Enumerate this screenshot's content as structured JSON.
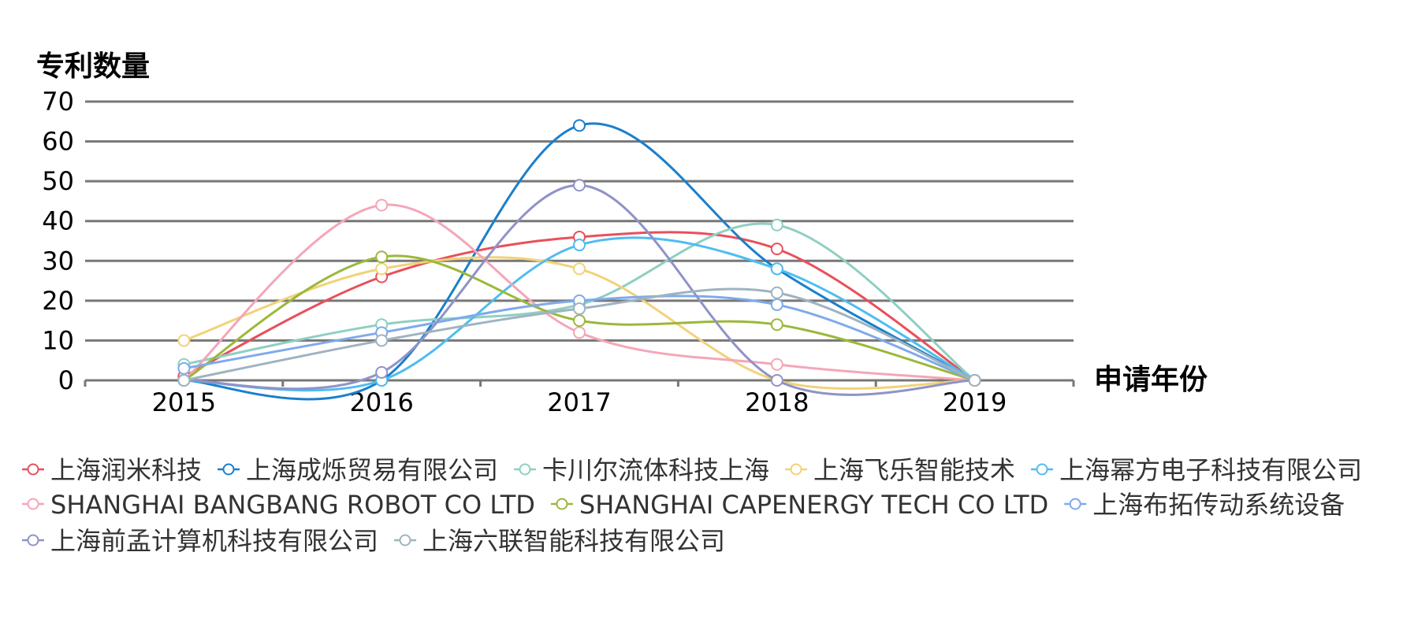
{
  "chart_data": {
    "type": "line",
    "ylabel": "专利数量",
    "xlabel": "申请年份",
    "x": [
      "2015",
      "2016",
      "2017",
      "2018",
      "2019"
    ],
    "ylim": [
      0,
      70
    ],
    "yticks": [
      0,
      10,
      20,
      30,
      40,
      50,
      60,
      70
    ],
    "grid": true,
    "smooth": true,
    "legend_position": "bottom",
    "series": [
      {
        "name": "上海润米科技",
        "color": "#e8505b",
        "values": [
          1,
          26,
          36,
          33,
          0
        ]
      },
      {
        "name": "上海成烁贸易有限公司",
        "color": "#1a7fcc",
        "values": [
          0,
          0,
          64,
          28,
          0
        ]
      },
      {
        "name": "卡川尔流体科技上海",
        "color": "#8fcfc2",
        "values": [
          4,
          14,
          19,
          39,
          0
        ]
      },
      {
        "name": "上海飞乐智能技术",
        "color": "#f2d279",
        "values": [
          10,
          28,
          28,
          0,
          0
        ]
      },
      {
        "name": "上海幂方电子科技有限公司",
        "color": "#4fbdf0",
        "values": [
          0,
          0,
          34,
          28,
          0
        ]
      },
      {
        "name": "SHANGHAI BANGBANG ROBOT CO LTD",
        "color": "#f4a6b8",
        "values": [
          0,
          44,
          12,
          4,
          0
        ]
      },
      {
        "name": "SHANGHAI CAPENERGY TECH CO LTD",
        "color": "#9bb83a",
        "values": [
          0,
          31,
          15,
          14,
          0
        ]
      },
      {
        "name": "上海布拓传动系统设备",
        "color": "#7faaeb",
        "values": [
          3,
          12,
          20,
          19,
          0
        ]
      },
      {
        "name": "上海前孟计算机科技有限公司",
        "color": "#8f93c7",
        "values": [
          0,
          2,
          49,
          0,
          0
        ]
      },
      {
        "name": "上海六联智能科技有限公司",
        "color": "#9fb3c0",
        "values": [
          0,
          10,
          18,
          22,
          0
        ]
      }
    ]
  }
}
